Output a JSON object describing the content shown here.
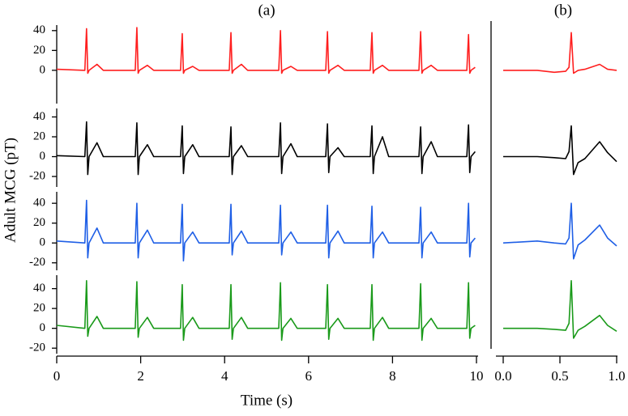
{
  "chart_data": [
    {
      "type": "line",
      "title": "(a)",
      "xlabel": "Time (s)",
      "ylabel": "Adult MCG (pT)",
      "x": [
        0,
        0.67,
        0.71,
        0.74,
        0.77,
        0.96,
        1.11,
        1.87,
        1.91,
        1.94,
        1.97,
        2.16,
        2.31,
        2.95,
        2.99,
        3.02,
        3.05,
        3.24,
        3.39,
        4.11,
        4.15,
        4.18,
        4.21,
        4.4,
        4.55,
        5.29,
        5.33,
        5.36,
        5.39,
        5.58,
        5.73,
        6.41,
        6.45,
        6.48,
        6.51,
        6.7,
        6.85,
        7.47,
        7.51,
        7.54,
        7.57,
        7.76,
        7.91,
        8.63,
        8.67,
        8.7,
        8.73,
        8.92,
        9.07,
        9.77,
        9.81,
        9.84,
        9.87,
        9.97
      ],
      "xlim": [
        0,
        10
      ],
      "xticks": [
        0,
        2,
        4,
        6,
        8,
        10
      ],
      "series": [
        {
          "color": "#ff1f1f",
          "ylim": [
            -36,
            48
          ],
          "yticks": [
            0,
            20,
            40
          ],
          "values": [
            1,
            0,
            42,
            -3,
            0,
            6,
            0,
            0,
            43,
            -3,
            0,
            5,
            0,
            0,
            37,
            -3,
            0,
            4,
            0,
            0,
            38,
            -3,
            0,
            6,
            0,
            0,
            40,
            -3,
            0,
            4,
            0,
            0,
            39,
            -3,
            0,
            5,
            0,
            0,
            38,
            -3,
            0,
            5,
            0,
            0,
            39,
            -3,
            0,
            5,
            0,
            0,
            36,
            -3,
            0,
            3
          ]
        },
        {
          "color": "#000000",
          "ylim": [
            -33,
            51
          ],
          "yticks": [
            -20,
            0,
            20,
            40
          ],
          "values": [
            1,
            0,
            35,
            -18,
            0,
            14,
            0,
            0,
            34,
            -18,
            0,
            12,
            0,
            0,
            31,
            -17,
            0,
            12,
            0,
            0,
            30,
            -18,
            0,
            11,
            0,
            0,
            34,
            -17,
            0,
            13,
            0,
            0,
            33,
            -16,
            0,
            9,
            0,
            0,
            31,
            -17,
            0,
            20,
            0,
            0,
            30,
            -17,
            0,
            15,
            0,
            0,
            32,
            -16,
            0,
            5
          ]
        },
        {
          "color": "#1f5fe6",
          "ylim": [
            -30,
            54
          ],
          "yticks": [
            -20,
            0,
            20,
            40
          ],
          "values": [
            2,
            0,
            43,
            -15,
            0,
            15,
            0,
            0,
            40,
            -15,
            0,
            13,
            0,
            0,
            39,
            -18,
            0,
            11,
            0,
            0,
            39,
            -12,
            0,
            12,
            0,
            0,
            38,
            -12,
            0,
            11,
            0,
            0,
            38,
            -15,
            0,
            12,
            0,
            0,
            37,
            -15,
            0,
            11,
            0,
            0,
            36,
            -15,
            0,
            11,
            0,
            0,
            40,
            -14,
            0,
            5
          ]
        },
        {
          "color": "#1a9a1a",
          "ylim": [
            -28,
            56
          ],
          "yticks": [
            -20,
            0,
            20,
            40
          ],
          "values": [
            3,
            0,
            48,
            -8,
            0,
            12,
            0,
            0,
            47,
            -9,
            0,
            11,
            0,
            0,
            44,
            -12,
            0,
            11,
            0,
            0,
            44,
            -11,
            0,
            11,
            0,
            0,
            46,
            -12,
            0,
            10,
            0,
            0,
            44,
            -11,
            0,
            10,
            0,
            0,
            44,
            -12,
            0,
            11,
            0,
            0,
            45,
            -12,
            0,
            10,
            0,
            0,
            46,
            -10,
            0,
            3
          ]
        }
      ]
    },
    {
      "type": "line",
      "title": "(b)",
      "x": [
        0,
        0.3,
        0.45,
        0.55,
        0.58,
        0.6,
        0.62,
        0.66,
        0.72,
        0.85,
        0.92,
        1.0
      ],
      "xlim": [
        0,
        1
      ],
      "xticks": [
        {
          "value": 0,
          "label": "0.0"
        },
        {
          "value": 0.5,
          "label": "0.5"
        },
        {
          "value": 1,
          "label": "1.0"
        }
      ],
      "series": [
        {
          "color": "#ff1f1f",
          "values": [
            0,
            0,
            -2,
            -1,
            3,
            38,
            -3,
            0,
            1,
            6,
            1,
            0
          ]
        },
        {
          "color": "#000000",
          "values": [
            0,
            0,
            -1,
            -2,
            5,
            31,
            -18,
            -6,
            -2,
            15,
            4,
            -5
          ]
        },
        {
          "color": "#1f5fe6",
          "values": [
            0,
            2,
            0,
            -1,
            5,
            40,
            -16,
            -2,
            3,
            18,
            5,
            -3
          ]
        },
        {
          "color": "#1a9a1a",
          "values": [
            0,
            0,
            -1,
            -2,
            5,
            48,
            -10,
            -2,
            2,
            13,
            3,
            -3
          ]
        }
      ]
    }
  ]
}
